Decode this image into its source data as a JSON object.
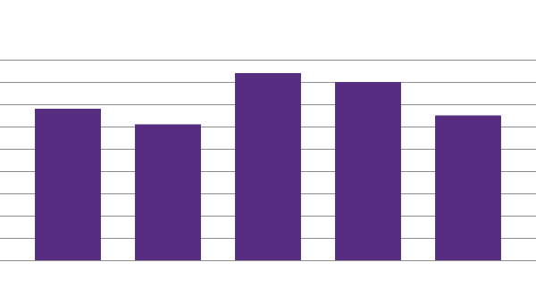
{
  "chart_data": {
    "type": "bar",
    "categories": [
      null,
      null,
      null,
      null,
      null
    ],
    "values": [
      6.8,
      6.1,
      8.4,
      8.0,
      6.5
    ],
    "color": "#572d81",
    "ylim": [
      0,
      9
    ],
    "yticks": [
      0,
      1,
      2,
      3,
      4,
      5,
      6,
      7,
      8,
      9
    ],
    "grid": true
  }
}
